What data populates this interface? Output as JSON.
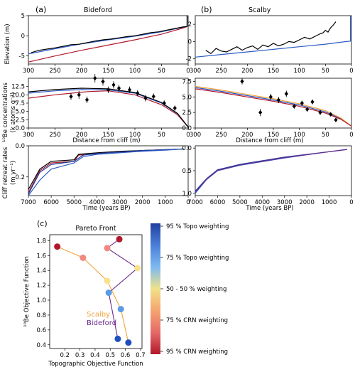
{
  "panels": {
    "a": "(a)",
    "b": "(b)",
    "c": "(c)"
  },
  "sites": {
    "bideford": "Bideford",
    "scalby": "Scalby"
  },
  "labels": {
    "elevation": "Elevation (m)",
    "crn": "¹⁰Be concentrations",
    "crn_unit": "(k atoms g⁻¹)",
    "retreat": "Cliff retreat rates",
    "retreat_unit": "(m yr⁻¹)",
    "distance": "Distance from cliff (m)",
    "time": "Time (years BP)"
  },
  "pareto_legend": {
    "scalby": "Scalby",
    "bideford": "Bideford"
  },
  "colors": {
    "black": "#000000",
    "blue": "#2b59c3",
    "navy": "#1f3b9a",
    "red": "#b2182b",
    "scalby": "#f4a23a",
    "bideford": "#6b2a8c"
  },
  "colorbar": {
    "title": null,
    "labels": [
      "95 % Topo weighting",
      "75 % Topo weighting",
      "50 - 50 % weighting",
      "75 % CRN weighting",
      "95 % CRN weighting"
    ],
    "gradient": [
      "#2040a0",
      "#4a7fd8",
      "#7db9f0",
      "#f0e28a",
      "#f6a470",
      "#e46a6a",
      "#b2182b"
    ]
  },
  "chart_data": [
    {
      "id": "a-elevation",
      "type": "line",
      "title": "Bideford",
      "xlabel": "",
      "ylabel": "Elevation (m)",
      "xlim": [
        300,
        0
      ],
      "ylim": [
        -7,
        5
      ],
      "xticks": [
        300,
        250,
        200,
        150,
        100,
        50,
        0
      ],
      "yticks": [
        -5,
        0,
        5
      ],
      "series": [
        {
          "color": "blue",
          "x": [
            300,
            250,
            200,
            150,
            100,
            50,
            10,
            2,
            2
          ],
          "y": [
            -4.5,
            -3.2,
            -2.0,
            -1.0,
            -0.1,
            1.0,
            2.1,
            2.3,
            5
          ]
        },
        {
          "color": "red",
          "x": [
            300,
            250,
            200,
            150,
            100,
            50,
            10,
            2
          ],
          "y": [
            -6.5,
            -5.0,
            -3.6,
            -2.3,
            -1.0,
            0.4,
            1.9,
            2.3
          ]
        },
        {
          "color": "black",
          "x": [
            295,
            280,
            265,
            250,
            235,
            220,
            205,
            190,
            175,
            160,
            145,
            130,
            115,
            100,
            85,
            70,
            55,
            40,
            25,
            10,
            2,
            2
          ],
          "y": [
            -4.2,
            -3.6,
            -3.3,
            -3.0,
            -2.6,
            -2.2,
            -2.1,
            -1.7,
            -1.3,
            -1.0,
            -0.8,
            -0.5,
            -0.2,
            0.0,
            0.4,
            0.8,
            1.0,
            1.4,
            1.8,
            2.2,
            2.3,
            5
          ]
        }
      ]
    },
    {
      "id": "b-elevation",
      "type": "line",
      "title": "Scalby",
      "xlabel": "",
      "ylabel": "",
      "xlim": [
        300,
        0
      ],
      "ylim": [
        -2.6,
        3
      ],
      "xticks": [
        300,
        250,
        200,
        150,
        100,
        50,
        0
      ],
      "yticks": [
        -2,
        0,
        2
      ],
      "series": [
        {
          "color": "blue",
          "x": [
            300,
            250,
            200,
            150,
            100,
            50,
            10,
            2,
            2
          ],
          "y": [
            -1.8,
            -1.5,
            -1.2,
            -0.9,
            -0.6,
            -0.3,
            0.0,
            0.05,
            3
          ]
        },
        {
          "color": "black",
          "x": [
            280,
            270,
            260,
            250,
            240,
            230,
            220,
            210,
            200,
            190,
            180,
            170,
            160,
            150,
            140,
            130,
            120,
            110,
            100,
            90,
            80,
            70,
            60,
            55,
            50,
            45,
            40,
            35,
            30
          ],
          "y": [
            -1.0,
            -1.4,
            -0.8,
            -1.1,
            -1.2,
            -0.9,
            -0.6,
            -1.0,
            -0.7,
            -0.5,
            -0.9,
            -0.4,
            -0.6,
            -0.2,
            -0.5,
            -0.3,
            0.0,
            -0.1,
            0.2,
            0.5,
            0.3,
            0.6,
            0.9,
            1.0,
            1.3,
            1.1,
            1.6,
            1.9,
            2.3
          ]
        }
      ]
    },
    {
      "id": "a-crn",
      "type": "line",
      "title": "",
      "xlabel": "Distance from cliff (m)",
      "ylabel": "¹⁰Be concentrations (k atoms g⁻¹)",
      "xlim": [
        300,
        0
      ],
      "ylim": [
        0,
        15
      ],
      "xticks": [
        300,
        250,
        200,
        150,
        100,
        50,
        0
      ],
      "yticks": [
        0.0,
        2.5,
        5.0,
        7.5,
        10.0,
        12.5
      ],
      "series": [
        {
          "color": "red",
          "x": [
            300,
            250,
            200,
            185,
            150,
            100,
            50,
            20,
            0
          ],
          "y": [
            9.0,
            10.0,
            10.8,
            11.0,
            11.2,
            10.0,
            7.0,
            4.0,
            0.3
          ]
        },
        {
          "color": "blue",
          "x": [
            300,
            250,
            200,
            150,
            100,
            50,
            20,
            0
          ],
          "y": [
            10.5,
            11.2,
            11.6,
            11.5,
            10.5,
            7.5,
            4.3,
            0.3
          ]
        },
        {
          "color": "black",
          "x": [
            300,
            250,
            200,
            150,
            100,
            50,
            20,
            0
          ],
          "y": [
            10.9,
            11.6,
            12.0,
            11.8,
            10.7,
            7.7,
            4.4,
            0.3
          ]
        }
      ],
      "points": {
        "x": [
          220,
          205,
          190,
          175,
          160,
          150,
          140,
          130,
          110,
          95,
          80,
          65,
          45,
          25
        ],
        "y": [
          9.5,
          10.0,
          8.5,
          15.0,
          14.0,
          11.5,
          13.0,
          12.0,
          11.5,
          10.5,
          9.0,
          9.5,
          7.5,
          6.0
        ],
        "err": [
          1.0,
          1.2,
          1.0,
          1.3,
          1.2,
          1.0,
          1.1,
          1.0,
          1.0,
          0.9,
          1.0,
          0.9,
          0.8,
          0.8
        ]
      }
    },
    {
      "id": "b-crn",
      "type": "line",
      "title": "",
      "xlabel": "Distance from cliff (m)",
      "ylabel": "",
      "xlim": [
        300,
        0
      ],
      "ylim": [
        0,
        8
      ],
      "xticks": [
        300,
        250,
        200,
        150,
        100,
        50,
        0
      ],
      "yticks": [
        0.0,
        2.5,
        5.0,
        7.5
      ],
      "series": [
        {
          "color": "blue",
          "x": [
            300,
            250,
            200,
            150,
            100,
            50,
            20,
            0
          ],
          "y": [
            6.5,
            5.9,
            5.2,
            4.5,
            3.7,
            2.6,
            1.5,
            0.3
          ]
        },
        {
          "color": "scalby",
          "x": [
            300,
            250,
            200,
            150,
            100,
            50,
            20,
            0
          ],
          "y": [
            6.7,
            6.1,
            5.4,
            4.7,
            3.9,
            2.8,
            1.6,
            0.3
          ]
        },
        {
          "color": "red",
          "x": [
            300,
            250,
            200,
            150,
            100,
            50,
            20,
            0
          ],
          "y": [
            6.3,
            5.7,
            5.0,
            4.3,
            3.5,
            2.4,
            1.4,
            0.3
          ]
        }
      ],
      "points": {
        "x": [
          210,
          175,
          155,
          140,
          125,
          110,
          95,
          85,
          75,
          60,
          40,
          30
        ],
        "y": [
          7.5,
          2.5,
          5.0,
          4.5,
          5.5,
          3.5,
          4.0,
          3.0,
          4.2,
          2.5,
          2.2,
          1.3
        ],
        "err": [
          0.5,
          0.6,
          0.5,
          0.5,
          0.5,
          0.4,
          0.4,
          0.4,
          0.4,
          0.4,
          0.3,
          0.3
        ]
      }
    },
    {
      "id": "a-retreat",
      "type": "line",
      "title": "",
      "xlabel": "Time (years BP)",
      "ylabel": "Cliff retreat rates (m yr⁻¹)",
      "xlim": [
        7000,
        0
      ],
      "ylim": [
        0.32,
        0.0
      ],
      "xticks": [
        7000,
        6000,
        5000,
        4000,
        3000,
        2000,
        1000,
        0
      ],
      "yticks": [
        0.0,
        0.2
      ],
      "series": [
        {
          "color": "red",
          "x": [
            7000,
            6500,
            6000,
            5000,
            4800,
            4000,
            3000,
            2000,
            1000,
            200
          ],
          "y": [
            0.3,
            0.16,
            0.11,
            0.1,
            0.06,
            0.05,
            0.04,
            0.03,
            0.025,
            0.02
          ]
        },
        {
          "color": "black",
          "x": [
            7000,
            6500,
            6000,
            5000,
            4800,
            4000,
            3000,
            2000,
            1000,
            200
          ],
          "y": [
            0.28,
            0.15,
            0.1,
            0.09,
            0.055,
            0.045,
            0.035,
            0.03,
            0.025,
            0.02
          ]
        },
        {
          "color": "navy",
          "x": [
            7000,
            6500,
            6000,
            5500,
            5000,
            4600,
            4000,
            3000,
            2000,
            1000,
            200
          ],
          "y": [
            0.31,
            0.17,
            0.12,
            0.11,
            0.1,
            0.06,
            0.05,
            0.04,
            0.03,
            0.025,
            0.02
          ]
        },
        {
          "color": "blue",
          "x": [
            7000,
            6500,
            6000,
            5500,
            5000,
            4600,
            4000,
            3000,
            2000,
            1000,
            200
          ],
          "y": [
            0.32,
            0.22,
            0.15,
            0.13,
            0.11,
            0.07,
            0.055,
            0.045,
            0.035,
            0.028,
            0.02
          ]
        }
      ]
    },
    {
      "id": "b-retreat",
      "type": "line",
      "title": "",
      "xlabel": "Time (years BP)",
      "ylabel": "",
      "xlim": [
        7000,
        0
      ],
      "ylim": [
        1.05,
        -0.05
      ],
      "xticks": [
        7000,
        6000,
        5000,
        4000,
        3000,
        2000,
        1000,
        0
      ],
      "yticks": [
        0.0,
        0.5,
        1.0
      ],
      "series": [
        {
          "color": "blue",
          "x": [
            7000,
            6500,
            6000,
            5000,
            4000,
            3000,
            2000,
            1000,
            200
          ],
          "y": [
            1.0,
            0.7,
            0.5,
            0.38,
            0.3,
            0.22,
            0.15,
            0.08,
            0.03
          ]
        },
        {
          "color": "navy",
          "x": [
            7000,
            6500,
            6000,
            5000,
            4000,
            3000,
            2000,
            1000,
            200
          ],
          "y": [
            0.95,
            0.68,
            0.48,
            0.36,
            0.28,
            0.2,
            0.14,
            0.08,
            0.03
          ]
        },
        {
          "color": "bideford",
          "x": [
            7000,
            6500,
            6000,
            5000,
            4000,
            3000,
            2000,
            1000,
            200
          ],
          "y": [
            0.97,
            0.69,
            0.49,
            0.37,
            0.29,
            0.21,
            0.145,
            0.08,
            0.03
          ]
        }
      ]
    },
    {
      "id": "c-pareto",
      "type": "scatter",
      "title": "Pareto Front",
      "xlabel": "Topographic Objective Function",
      "ylabel": "¹⁰Be Objective Function",
      "xlim": [
        0.1,
        0.71
      ],
      "ylim": [
        0.35,
        1.88
      ],
      "xticks": [
        0.2,
        0.3,
        0.4,
        0.5,
        0.6,
        0.7
      ],
      "yticks": [
        0.4,
        0.6,
        0.8,
        1.0,
        1.2,
        1.4,
        1.6,
        1.8
      ],
      "series": [
        {
          "name": "Scalby",
          "color": "scalby",
          "x": [
            0.15,
            0.32,
            0.48,
            0.57,
            0.62
          ],
          "y": [
            1.72,
            1.57,
            1.26,
            0.88,
            0.43
          ],
          "point_colors": [
            "#b2182b",
            "#f08a80",
            "#f6e28e",
            "#5b9be6",
            "#1f4fbf"
          ]
        },
        {
          "name": "Bideford",
          "color": "bideford",
          "x": [
            0.56,
            0.48,
            0.68,
            0.49,
            0.55
          ],
          "y": [
            1.82,
            1.7,
            1.43,
            1.1,
            0.48
          ],
          "point_colors": [
            "#b2182b",
            "#f08a80",
            "#f6e28e",
            "#5b9be6",
            "#1f4fbf"
          ]
        }
      ]
    }
  ]
}
